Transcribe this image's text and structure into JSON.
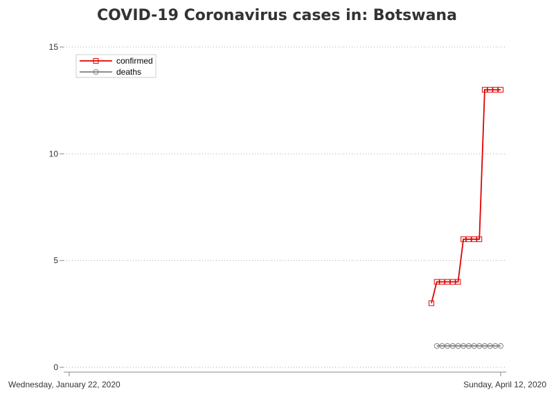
{
  "chart_data": {
    "type": "line",
    "title": "COVID-19 Coronavirus cases in: Botswana",
    "xlabel": "",
    "ylabel": "",
    "x_range": [
      "2020-01-22",
      "2020-04-12"
    ],
    "x_tick_labels": [
      {
        "date": "2020-01-22",
        "label": "Wednesday, January 22, 2020"
      },
      {
        "date": "2020-04-12",
        "label": "Sunday, April 12, 2020"
      }
    ],
    "ylim": [
      0,
      15
    ],
    "y_ticks": [
      0,
      5,
      10,
      15
    ],
    "grid": "horizontal dotted",
    "legend_position": "top-left",
    "series": [
      {
        "name": "confirmed",
        "color": "#dd0000",
        "marker": "square",
        "points": [
          {
            "x": "2020-03-30",
            "y": 3
          },
          {
            "x": "2020-03-31",
            "y": 4
          },
          {
            "x": "2020-04-01",
            "y": 4
          },
          {
            "x": "2020-04-02",
            "y": 4
          },
          {
            "x": "2020-04-03",
            "y": 4
          },
          {
            "x": "2020-04-04",
            "y": 4
          },
          {
            "x": "2020-04-05",
            "y": 6
          },
          {
            "x": "2020-04-06",
            "y": 6
          },
          {
            "x": "2020-04-07",
            "y": 6
          },
          {
            "x": "2020-04-08",
            "y": 6
          },
          {
            "x": "2020-04-09",
            "y": 13
          },
          {
            "x": "2020-04-10",
            "y": 13
          },
          {
            "x": "2020-04-11",
            "y": 13
          },
          {
            "x": "2020-04-12",
            "y": 13
          }
        ]
      },
      {
        "name": "deaths",
        "color": "#7f7f7f",
        "marker": "circle",
        "points": [
          {
            "x": "2020-03-31",
            "y": 1
          },
          {
            "x": "2020-04-01",
            "y": 1
          },
          {
            "x": "2020-04-02",
            "y": 1
          },
          {
            "x": "2020-04-03",
            "y": 1
          },
          {
            "x": "2020-04-04",
            "y": 1
          },
          {
            "x": "2020-04-05",
            "y": 1
          },
          {
            "x": "2020-04-06",
            "y": 1
          },
          {
            "x": "2020-04-07",
            "y": 1
          },
          {
            "x": "2020-04-08",
            "y": 1
          },
          {
            "x": "2020-04-09",
            "y": 1
          },
          {
            "x": "2020-04-10",
            "y": 1
          },
          {
            "x": "2020-04-11",
            "y": 1
          },
          {
            "x": "2020-04-12",
            "y": 1
          }
        ]
      }
    ]
  }
}
